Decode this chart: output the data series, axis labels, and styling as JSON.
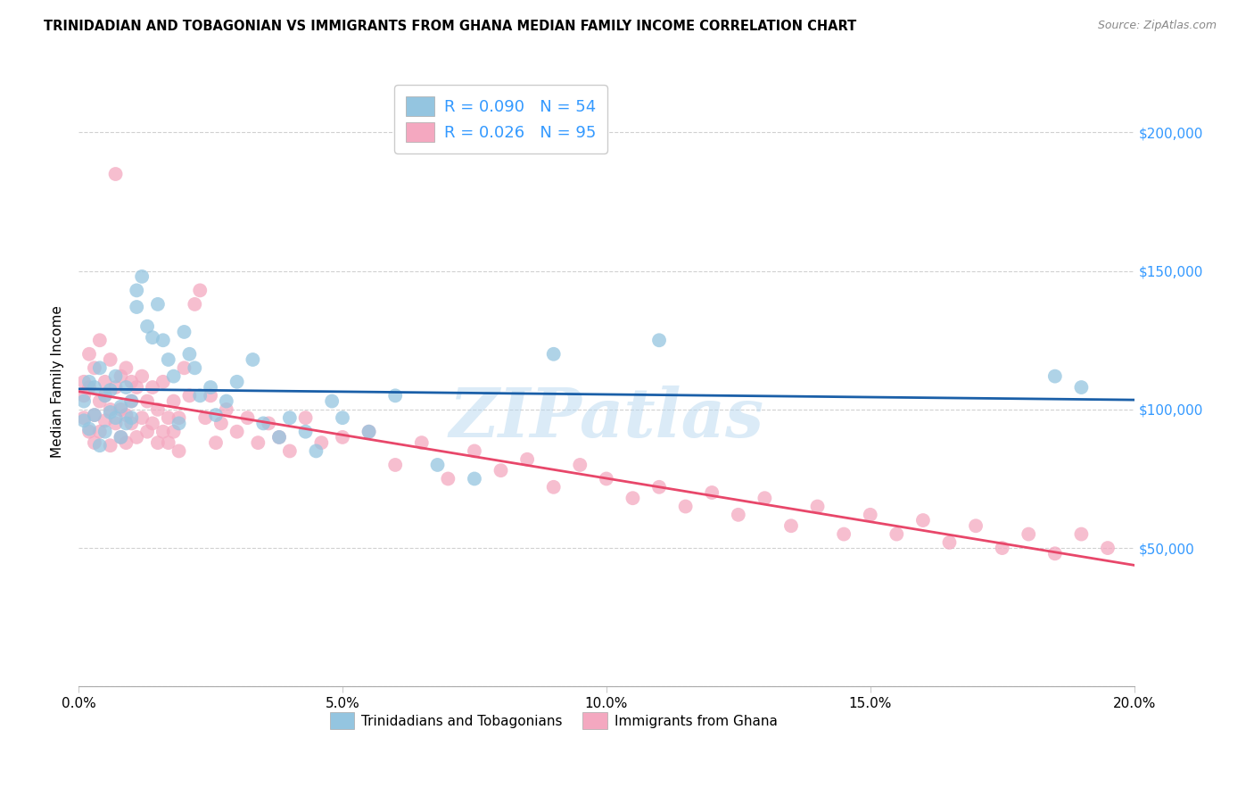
{
  "title": "TRINIDADIAN AND TOBAGONIAN VS IMMIGRANTS FROM GHANA MEDIAN FAMILY INCOME CORRELATION CHART",
  "source": "Source: ZipAtlas.com",
  "ylabel": "Median Family Income",
  "xlim": [
    0.0,
    0.2
  ],
  "ylim": [
    0,
    220000
  ],
  "xticks": [
    0.0,
    0.05,
    0.1,
    0.15,
    0.2
  ],
  "xtick_labels": [
    "0.0%",
    "5.0%",
    "10.0%",
    "15.0%",
    "20.0%"
  ],
  "yticks": [
    0,
    50000,
    100000,
    150000,
    200000
  ],
  "ytick_labels": [
    "",
    "$50,000",
    "$100,000",
    "$150,000",
    "$200,000"
  ],
  "legend_r1": "R = 0.090",
  "legend_n1": "N = 54",
  "legend_r2": "R = 0.026",
  "legend_n2": "N = 95",
  "blue_color": "#94c5e0",
  "pink_color": "#f4a8c0",
  "blue_line_color": "#1a5fa8",
  "pink_line_color": "#e8476a",
  "label1": "Trinidadians and Tobagonians",
  "label2": "Immigrants from Ghana",
  "watermark": "ZIPatlas",
  "blue_scatter_x": [
    0.001,
    0.001,
    0.002,
    0.002,
    0.003,
    0.003,
    0.004,
    0.004,
    0.005,
    0.005,
    0.006,
    0.006,
    0.007,
    0.007,
    0.008,
    0.008,
    0.009,
    0.009,
    0.01,
    0.01,
    0.011,
    0.011,
    0.012,
    0.013,
    0.014,
    0.015,
    0.016,
    0.017,
    0.018,
    0.019,
    0.02,
    0.021,
    0.022,
    0.023,
    0.025,
    0.026,
    0.028,
    0.03,
    0.033,
    0.035,
    0.038,
    0.04,
    0.043,
    0.045,
    0.048,
    0.05,
    0.055,
    0.06,
    0.068,
    0.075,
    0.09,
    0.11,
    0.185,
    0.19
  ],
  "blue_scatter_y": [
    103000,
    96000,
    110000,
    93000,
    108000,
    98000,
    115000,
    87000,
    105000,
    92000,
    99000,
    107000,
    97000,
    112000,
    101000,
    90000,
    95000,
    108000,
    97000,
    103000,
    143000,
    137000,
    148000,
    130000,
    126000,
    138000,
    125000,
    118000,
    112000,
    95000,
    128000,
    120000,
    115000,
    105000,
    108000,
    98000,
    103000,
    110000,
    118000,
    95000,
    90000,
    97000,
    92000,
    85000,
    103000,
    97000,
    92000,
    105000,
    80000,
    75000,
    120000,
    125000,
    112000,
    108000
  ],
  "pink_scatter_x": [
    0.001,
    0.001,
    0.001,
    0.002,
    0.002,
    0.002,
    0.003,
    0.003,
    0.003,
    0.004,
    0.004,
    0.004,
    0.005,
    0.005,
    0.005,
    0.006,
    0.006,
    0.006,
    0.007,
    0.007,
    0.007,
    0.008,
    0.008,
    0.008,
    0.009,
    0.009,
    0.009,
    0.01,
    0.01,
    0.01,
    0.011,
    0.011,
    0.012,
    0.012,
    0.013,
    0.013,
    0.014,
    0.014,
    0.015,
    0.015,
    0.016,
    0.016,
    0.017,
    0.017,
    0.018,
    0.018,
    0.019,
    0.019,
    0.02,
    0.021,
    0.022,
    0.023,
    0.024,
    0.025,
    0.026,
    0.027,
    0.028,
    0.03,
    0.032,
    0.034,
    0.036,
    0.038,
    0.04,
    0.043,
    0.046,
    0.05,
    0.055,
    0.06,
    0.065,
    0.07,
    0.075,
    0.08,
    0.085,
    0.09,
    0.095,
    0.1,
    0.105,
    0.11,
    0.115,
    0.12,
    0.125,
    0.13,
    0.135,
    0.14,
    0.145,
    0.15,
    0.155,
    0.16,
    0.165,
    0.17,
    0.175,
    0.18,
    0.185,
    0.19,
    0.195
  ],
  "pink_scatter_y": [
    105000,
    97000,
    110000,
    92000,
    108000,
    120000,
    98000,
    115000,
    88000,
    103000,
    125000,
    92000,
    110000,
    96000,
    105000,
    118000,
    87000,
    100000,
    108000,
    95000,
    185000,
    100000,
    112000,
    90000,
    98000,
    115000,
    88000,
    103000,
    95000,
    110000,
    108000,
    90000,
    112000,
    97000,
    103000,
    92000,
    108000,
    95000,
    100000,
    88000,
    110000,
    92000,
    97000,
    88000,
    103000,
    92000,
    97000,
    85000,
    115000,
    105000,
    138000,
    143000,
    97000,
    105000,
    88000,
    95000,
    100000,
    92000,
    97000,
    88000,
    95000,
    90000,
    85000,
    97000,
    88000,
    90000,
    92000,
    80000,
    88000,
    75000,
    85000,
    78000,
    82000,
    72000,
    80000,
    75000,
    68000,
    72000,
    65000,
    70000,
    62000,
    68000,
    58000,
    65000,
    55000,
    62000,
    55000,
    60000,
    52000,
    58000,
    50000,
    55000,
    48000,
    55000,
    50000
  ]
}
